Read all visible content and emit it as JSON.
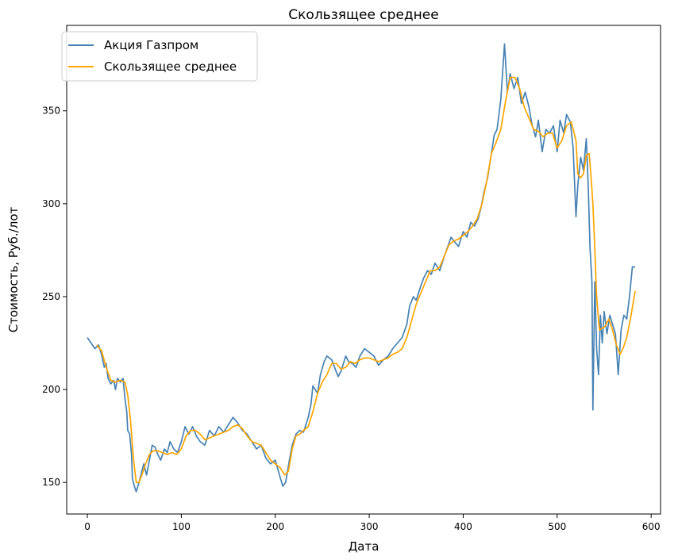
{
  "chart_data": {
    "type": "line",
    "title": "Скользящее среднее",
    "xlabel": "Дата",
    "ylabel": "Стоимость, Руб./лот",
    "xlim": [
      -22,
      610
    ],
    "ylim": [
      133,
      396
    ],
    "xticks": [
      0,
      100,
      200,
      300,
      400,
      500,
      600
    ],
    "yticks": [
      150,
      200,
      250,
      300,
      350
    ],
    "grid": false,
    "legend": "top-left",
    "series": [
      {
        "name": "Акция Газпром",
        "color": "#4682b4",
        "points": [
          [
            0,
            228
          ],
          [
            4,
            225
          ],
          [
            8,
            222
          ],
          [
            12,
            224
          ],
          [
            15,
            219
          ],
          [
            18,
            212
          ],
          [
            20,
            214
          ],
          [
            22,
            206
          ],
          [
            25,
            203
          ],
          [
            28,
            205
          ],
          [
            30,
            200
          ],
          [
            32,
            206
          ],
          [
            35,
            204
          ],
          [
            38,
            206
          ],
          [
            40,
            195
          ],
          [
            42,
            188
          ],
          [
            43,
            178
          ],
          [
            45,
            176
          ],
          [
            47,
            165
          ],
          [
            48,
            152
          ],
          [
            50,
            148
          ],
          [
            52,
            145
          ],
          [
            55,
            150
          ],
          [
            58,
            156
          ],
          [
            60,
            160
          ],
          [
            63,
            154
          ],
          [
            66,
            162
          ],
          [
            69,
            170
          ],
          [
            72,
            169
          ],
          [
            75,
            165
          ],
          [
            78,
            162
          ],
          [
            82,
            168
          ],
          [
            85,
            166
          ],
          [
            88,
            172
          ],
          [
            92,
            168
          ],
          [
            96,
            166
          ],
          [
            100,
            172
          ],
          [
            104,
            180
          ],
          [
            108,
            176
          ],
          [
            112,
            180
          ],
          [
            116,
            175
          ],
          [
            120,
            172
          ],
          [
            125,
            170
          ],
          [
            130,
            178
          ],
          [
            135,
            175
          ],
          [
            140,
            180
          ],
          [
            145,
            177
          ],
          [
            150,
            181
          ],
          [
            155,
            185
          ],
          [
            160,
            182
          ],
          [
            165,
            178
          ],
          [
            170,
            176
          ],
          [
            175,
            172
          ],
          [
            180,
            168
          ],
          [
            185,
            170
          ],
          [
            190,
            163
          ],
          [
            195,
            160
          ],
          [
            200,
            162
          ],
          [
            205,
            153
          ],
          [
            208,
            148
          ],
          [
            211,
            150
          ],
          [
            215,
            162
          ],
          [
            218,
            170
          ],
          [
            222,
            176
          ],
          [
            226,
            178
          ],
          [
            230,
            177
          ],
          [
            235,
            185
          ],
          [
            238,
            192
          ],
          [
            240,
            202
          ],
          [
            245,
            198
          ],
          [
            248,
            208
          ],
          [
            252,
            215
          ],
          [
            255,
            218
          ],
          [
            260,
            216
          ],
          [
            263,
            212
          ],
          [
            267,
            207
          ],
          [
            270,
            210
          ],
          [
            275,
            218
          ],
          [
            278,
            215
          ],
          [
            282,
            214
          ],
          [
            286,
            212
          ],
          [
            290,
            218
          ],
          [
            295,
            222
          ],
          [
            300,
            220
          ],
          [
            305,
            218
          ],
          [
            310,
            213
          ],
          [
            315,
            216
          ],
          [
            320,
            218
          ],
          [
            325,
            222
          ],
          [
            330,
            225
          ],
          [
            335,
            228
          ],
          [
            340,
            235
          ],
          [
            343,
            245
          ],
          [
            347,
            250
          ],
          [
            350,
            248
          ],
          [
            355,
            256
          ],
          [
            358,
            260
          ],
          [
            362,
            264
          ],
          [
            366,
            262
          ],
          [
            370,
            268
          ],
          [
            375,
            264
          ],
          [
            380,
            272
          ],
          [
            383,
            276
          ],
          [
            387,
            282
          ],
          [
            390,
            280
          ],
          [
            395,
            277
          ],
          [
            400,
            285
          ],
          [
            404,
            282
          ],
          [
            408,
            290
          ],
          [
            412,
            288
          ],
          [
            416,
            292
          ],
          [
            419,
            298
          ],
          [
            422,
            306
          ],
          [
            426,
            314
          ],
          [
            430,
            327
          ],
          [
            433,
            337
          ],
          [
            436,
            340
          ],
          [
            440,
            356
          ],
          [
            444,
            386
          ],
          [
            447,
            360
          ],
          [
            450,
            370
          ],
          [
            454,
            362
          ],
          [
            458,
            368
          ],
          [
            462,
            354
          ],
          [
            466,
            360
          ],
          [
            470,
            352
          ],
          [
            473,
            343
          ],
          [
            477,
            336
          ],
          [
            480,
            345
          ],
          [
            484,
            328
          ],
          [
            488,
            340
          ],
          [
            492,
            338
          ],
          [
            496,
            342
          ],
          [
            500,
            328
          ],
          [
            503,
            345
          ],
          [
            507,
            338
          ],
          [
            510,
            348
          ],
          [
            514,
            344
          ],
          [
            517,
            330
          ],
          [
            520,
            293
          ],
          [
            522,
            310
          ],
          [
            525,
            325
          ],
          [
            528,
            318
          ],
          [
            531,
            335
          ],
          [
            533,
            310
          ],
          [
            535,
            276
          ],
          [
            537,
            258
          ],
          [
            538,
            189
          ],
          [
            540,
            258
          ],
          [
            542,
            222
          ],
          [
            544,
            208
          ],
          [
            546,
            240
          ],
          [
            548,
            225
          ],
          [
            550,
            242
          ],
          [
            553,
            230
          ],
          [
            556,
            240
          ],
          [
            559,
            235
          ],
          [
            562,
            230
          ],
          [
            565,
            208
          ],
          [
            568,
            232
          ],
          [
            571,
            240
          ],
          [
            574,
            238
          ],
          [
            577,
            250
          ],
          [
            580,
            266
          ],
          [
            583,
            266
          ]
        ]
      },
      {
        "name": "Скользящее среднее",
        "color": "#ffa500",
        "points": [
          [
            10,
            224
          ],
          [
            15,
            221
          ],
          [
            20,
            212
          ],
          [
            25,
            205
          ],
          [
            30,
            204
          ],
          [
            35,
            205
          ],
          [
            40,
            204
          ],
          [
            43,
            197
          ],
          [
            46,
            183
          ],
          [
            49,
            163
          ],
          [
            52,
            150
          ],
          [
            55,
            150
          ],
          [
            58,
            154
          ],
          [
            62,
            160
          ],
          [
            66,
            165
          ],
          [
            70,
            167
          ],
          [
            75,
            167
          ],
          [
            80,
            166
          ],
          [
            85,
            165
          ],
          [
            90,
            166
          ],
          [
            95,
            165
          ],
          [
            100,
            168
          ],
          [
            105,
            175
          ],
          [
            110,
            178
          ],
          [
            115,
            178
          ],
          [
            120,
            176
          ],
          [
            125,
            173
          ],
          [
            130,
            174
          ],
          [
            135,
            175
          ],
          [
            140,
            176
          ],
          [
            145,
            177
          ],
          [
            150,
            178
          ],
          [
            155,
            180
          ],
          [
            160,
            181
          ],
          [
            165,
            179
          ],
          [
            170,
            175
          ],
          [
            175,
            172
          ],
          [
            180,
            171
          ],
          [
            185,
            170
          ],
          [
            190,
            166
          ],
          [
            195,
            162
          ],
          [
            200,
            160
          ],
          [
            205,
            158
          ],
          [
            210,
            154
          ],
          [
            214,
            156
          ],
          [
            218,
            168
          ],
          [
            222,
            175
          ],
          [
            226,
            176
          ],
          [
            230,
            178
          ],
          [
            235,
            180
          ],
          [
            240,
            188
          ],
          [
            245,
            198
          ],
          [
            250,
            204
          ],
          [
            255,
            208
          ],
          [
            260,
            214
          ],
          [
            265,
            214
          ],
          [
            270,
            211
          ],
          [
            275,
            212
          ],
          [
            280,
            215
          ],
          [
            285,
            214
          ],
          [
            290,
            216
          ],
          [
            295,
            217
          ],
          [
            300,
            217
          ],
          [
            305,
            216
          ],
          [
            310,
            215
          ],
          [
            315,
            216
          ],
          [
            320,
            217
          ],
          [
            325,
            219
          ],
          [
            330,
            220
          ],
          [
            335,
            222
          ],
          [
            340,
            228
          ],
          [
            345,
            237
          ],
          [
            350,
            246
          ],
          [
            355,
            252
          ],
          [
            360,
            258
          ],
          [
            365,
            264
          ],
          [
            370,
            264
          ],
          [
            375,
            266
          ],
          [
            380,
            272
          ],
          [
            385,
            278
          ],
          [
            390,
            280
          ],
          [
            395,
            281
          ],
          [
            400,
            283
          ],
          [
            405,
            285
          ],
          [
            410,
            288
          ],
          [
            415,
            292
          ],
          [
            420,
            300
          ],
          [
            425,
            312
          ],
          [
            430,
            327
          ],
          [
            435,
            333
          ],
          [
            440,
            340
          ],
          [
            445,
            355
          ],
          [
            450,
            368
          ],
          [
            455,
            368
          ],
          [
            460,
            362
          ],
          [
            465,
            352
          ],
          [
            470,
            346
          ],
          [
            475,
            340
          ],
          [
            480,
            339
          ],
          [
            485,
            336
          ],
          [
            490,
            338
          ],
          [
            495,
            338
          ],
          [
            500,
            330
          ],
          [
            505,
            334
          ],
          [
            510,
            342
          ],
          [
            515,
            344
          ],
          [
            520,
            334
          ],
          [
            522,
            316
          ],
          [
            525,
            314
          ],
          [
            528,
            316
          ],
          [
            531,
            326
          ],
          [
            534,
            327
          ],
          [
            536,
            315
          ],
          [
            538,
            300
          ],
          [
            540,
            276
          ],
          [
            542,
            250
          ],
          [
            545,
            232
          ],
          [
            548,
            233
          ],
          [
            551,
            234
          ],
          [
            555,
            238
          ],
          [
            559,
            232
          ],
          [
            563,
            224
          ],
          [
            567,
            219
          ],
          [
            570,
            222
          ],
          [
            574,
            228
          ],
          [
            578,
            238
          ],
          [
            583,
            253
          ]
        ]
      }
    ]
  }
}
